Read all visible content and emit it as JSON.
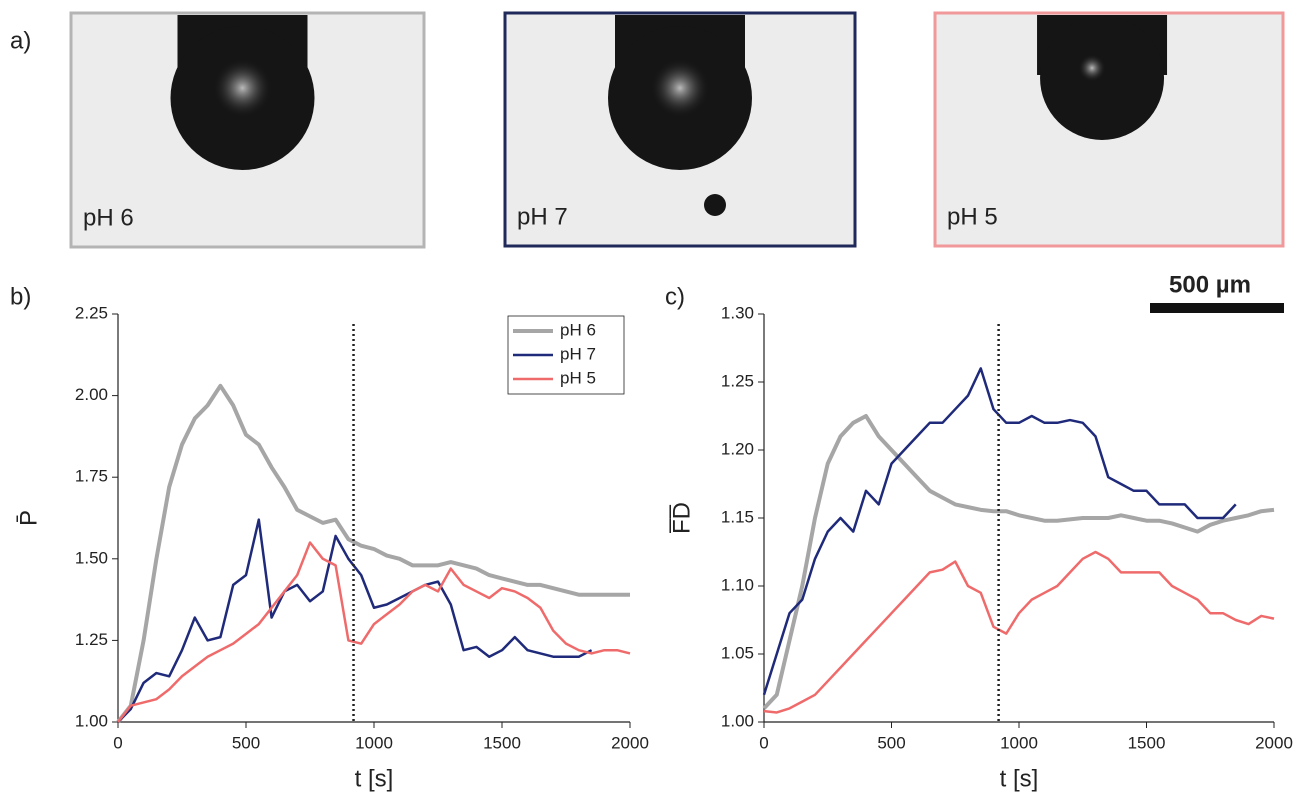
{
  "images": {
    "panel_label": "a)",
    "scale_bar": "500 µm",
    "items": [
      {
        "label": "pH 6",
        "border": "#b4b4b4"
      },
      {
        "label": "pH 7",
        "border": "#1f2a5a"
      },
      {
        "label": "pH 5",
        "border": "#f0989a"
      }
    ]
  },
  "chart_data": [
    {
      "type": "line",
      "panel_label": "b)",
      "x_label": "t [s]",
      "y_label": "P̄",
      "xlim": [
        0,
        2000
      ],
      "xticks": [
        0,
        500,
        1000,
        1500,
        2000
      ],
      "ylim": [
        1.0,
        2.25
      ],
      "yticks": [
        {
          "value": 1.0,
          "label": "1.00"
        },
        1.25,
        {
          "value": 1.5,
          "label": "1.50"
        },
        1.75,
        {
          "value": 2.0,
          "label": "2.00"
        },
        2.25
      ],
      "vline": 920,
      "legend": "upper right",
      "x": [
        0,
        50,
        100,
        150,
        200,
        250,
        300,
        350,
        400,
        450,
        500,
        550,
        600,
        650,
        700,
        750,
        800,
        850,
        900,
        950,
        1000,
        1050,
        1100,
        1150,
        1200,
        1250,
        1300,
        1350,
        1400,
        1450,
        1500,
        1550,
        1600,
        1650,
        1700,
        1750,
        1800,
        1850,
        1900,
        1950,
        2000
      ],
      "series": [
        {
          "name": "pH 6",
          "color": "#a6a6a6",
          "width": 4,
          "values": [
            1.0,
            1.05,
            1.25,
            1.5,
            1.72,
            1.85,
            1.93,
            1.97,
            2.03,
            1.97,
            1.88,
            1.85,
            1.78,
            1.72,
            1.65,
            1.63,
            1.61,
            1.62,
            1.56,
            1.54,
            1.53,
            1.51,
            1.5,
            1.48,
            1.48,
            1.48,
            1.49,
            1.48,
            1.47,
            1.45,
            1.44,
            1.43,
            1.42,
            1.42,
            1.41,
            1.4,
            1.39,
            1.39,
            1.39,
            1.39,
            1.39
          ]
        },
        {
          "name": "pH 7",
          "color": "#1f2a7a",
          "width": 2.5,
          "values": [
            1.0,
            1.04,
            1.12,
            1.15,
            1.14,
            1.22,
            1.32,
            1.25,
            1.26,
            1.42,
            1.45,
            1.62,
            1.32,
            1.4,
            1.42,
            1.37,
            1.4,
            1.57,
            1.5,
            1.45,
            1.35,
            1.36,
            1.38,
            1.4,
            1.42,
            1.43,
            1.36,
            1.22,
            1.23,
            1.2,
            1.22,
            1.26,
            1.22,
            1.21,
            1.2,
            1.2,
            1.2,
            1.22,
            null,
            null,
            null
          ]
        },
        {
          "name": "pH 5",
          "color": "#ef6b6b",
          "width": 2.5,
          "values": [
            1.0,
            1.05,
            1.06,
            1.07,
            1.1,
            1.14,
            1.17,
            1.2,
            1.22,
            1.24,
            1.27,
            1.3,
            1.35,
            1.4,
            1.45,
            1.55,
            1.5,
            1.48,
            1.25,
            1.24,
            1.3,
            1.33,
            1.36,
            1.4,
            1.42,
            1.4,
            1.47,
            1.42,
            1.4,
            1.38,
            1.41,
            1.4,
            1.38,
            1.35,
            1.28,
            1.24,
            1.22,
            1.21,
            1.22,
            1.22,
            1.21
          ]
        }
      ]
    },
    {
      "type": "line",
      "panel_label": "c)",
      "x_label": "t [s]",
      "y_label": "F̅D̅",
      "xlim": [
        0,
        2000
      ],
      "xticks": [
        0,
        500,
        1000,
        1500,
        2000
      ],
      "ylim": [
        1.0,
        1.3
      ],
      "yticks": [
        {
          "value": 1.0,
          "label": "1.00"
        },
        1.05,
        {
          "value": 1.1,
          "label": "1.10"
        },
        1.15,
        {
          "value": 1.2,
          "label": "1.20"
        },
        1.25,
        {
          "value": 1.3,
          "label": "1.30"
        }
      ],
      "vline": 920,
      "x": [
        0,
        50,
        100,
        150,
        200,
        250,
        300,
        350,
        400,
        450,
        500,
        550,
        600,
        650,
        700,
        750,
        800,
        850,
        900,
        950,
        1000,
        1050,
        1100,
        1150,
        1200,
        1250,
        1300,
        1350,
        1400,
        1450,
        1500,
        1550,
        1600,
        1650,
        1700,
        1750,
        1800,
        1850,
        1900,
        1950,
        2000
      ],
      "series": [
        {
          "name": "pH 6",
          "color": "#a6a6a6",
          "width": 4,
          "values": [
            1.01,
            1.02,
            1.06,
            1.1,
            1.15,
            1.19,
            1.21,
            1.22,
            1.225,
            1.21,
            1.2,
            1.19,
            1.18,
            1.17,
            1.165,
            1.16,
            1.158,
            1.156,
            1.155,
            1.155,
            1.152,
            1.15,
            1.148,
            1.148,
            1.149,
            1.15,
            1.15,
            1.15,
            1.152,
            1.15,
            1.148,
            1.148,
            1.146,
            1.143,
            1.14,
            1.145,
            1.148,
            1.15,
            1.152,
            1.155,
            1.156
          ]
        },
        {
          "name": "pH 7",
          "color": "#1f2a7a",
          "width": 2.5,
          "values": [
            1.02,
            1.05,
            1.08,
            1.09,
            1.12,
            1.14,
            1.15,
            1.14,
            1.17,
            1.16,
            1.19,
            1.2,
            1.21,
            1.22,
            1.22,
            1.23,
            1.24,
            1.26,
            1.23,
            1.22,
            1.22,
            1.225,
            1.22,
            1.22,
            1.222,
            1.22,
            1.21,
            1.18,
            1.175,
            1.17,
            1.17,
            1.16,
            1.16,
            1.16,
            1.15,
            1.15,
            1.15,
            1.16,
            null,
            null,
            null
          ]
        },
        {
          "name": "pH 5",
          "color": "#ef6b6b",
          "width": 2.5,
          "values": [
            1.008,
            1.007,
            1.01,
            1.015,
            1.02,
            1.03,
            1.04,
            1.05,
            1.06,
            1.07,
            1.08,
            1.09,
            1.1,
            1.11,
            1.112,
            1.118,
            1.1,
            1.095,
            1.07,
            1.065,
            1.08,
            1.09,
            1.095,
            1.1,
            1.11,
            1.12,
            1.125,
            1.12,
            1.11,
            1.11,
            1.11,
            1.11,
            1.1,
            1.095,
            1.09,
            1.08,
            1.08,
            1.075,
            1.072,
            1.078,
            1.076
          ]
        }
      ]
    }
  ]
}
